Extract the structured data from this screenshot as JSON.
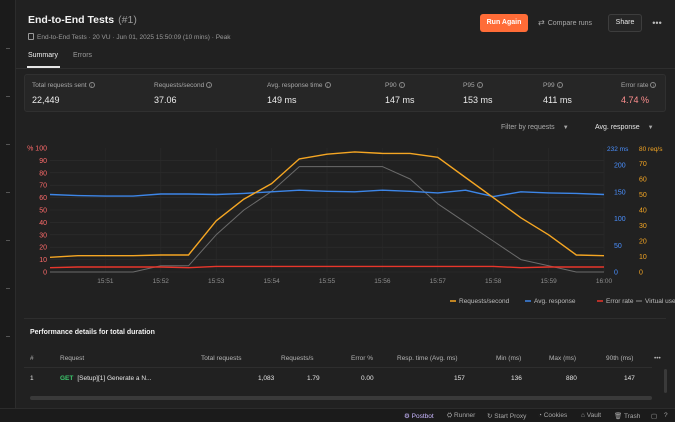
{
  "header": {
    "title": "End-to-End Tests",
    "run_number": "(#1)",
    "meta": "End-to-End Tests  ·   20 VU  ·   Jun 01, 2025 15:50:09 (10 mins)  ·   Peak",
    "run_again_label": "Run Again",
    "compare_label": "Compare runs",
    "share_label": "Share",
    "more_label": "•••"
  },
  "tabs": [
    {
      "label": "Summary",
      "active": true
    },
    {
      "label": "Errors",
      "active": false
    }
  ],
  "stats": [
    {
      "label": "Total requests sent",
      "value": "22,449"
    },
    {
      "label": "Requests/second",
      "value": "37.06"
    },
    {
      "label": "Avg. response time",
      "value": "149 ms"
    },
    {
      "label": "P90",
      "value": "147 ms"
    },
    {
      "label": "P95",
      "value": "153 ms"
    },
    {
      "label": "P99",
      "value": "411 ms"
    },
    {
      "label": "Error rate",
      "value": "4.74 %"
    }
  ],
  "filters": {
    "filter_by": "Filter by requests",
    "metric": "Avg. response"
  },
  "chart_data": {
    "type": "line",
    "x": [
      "15:50",
      "15:50:30",
      "15:51",
      "15:51:30",
      "15:52",
      "15:52:30",
      "15:53",
      "15:53:30",
      "15:54",
      "15:54:30",
      "15:55",
      "15:55:30",
      "15:56",
      "15:56:30",
      "15:57",
      "15:57:30",
      "15:58",
      "15:58:30",
      "15:59",
      "15:59:30",
      "16:00"
    ],
    "x_tick_labels": [
      "15:51",
      "15:52",
      "15:53",
      "15:54",
      "15:55",
      "15:56",
      "15:57",
      "15:58",
      "15:59",
      "16:00"
    ],
    "axes": {
      "left": {
        "label": "% 100",
        "ticks": [
          0,
          10,
          20,
          30,
          40,
          50,
          60,
          70,
          80,
          90
        ],
        "range": [
          0,
          100
        ],
        "color": "#ff6b6b"
      },
      "right_response": {
        "label": "232 ms",
        "ticks": [
          0,
          50,
          100,
          150,
          200
        ],
        "range": [
          0,
          232
        ],
        "color": "#4a90ff"
      },
      "right_throughput": {
        "label": "80 req/s",
        "ticks": [
          0,
          10,
          20,
          30,
          40,
          50,
          60,
          70
        ],
        "range": [
          0,
          80
        ],
        "color": "#f5a623"
      }
    },
    "series": [
      {
        "name": "Requests/second",
        "color": "#f5a623",
        "axis": "right_throughput",
        "values": [
          9.5,
          10.5,
          10.5,
          10.5,
          11,
          11,
          33,
          47,
          57,
          73,
          76,
          77.5,
          76.5,
          76.5,
          74,
          61,
          48,
          35,
          24,
          11,
          10.5
        ]
      },
      {
        "name": "Avg. response",
        "color": "#3d86e8",
        "axis": "right_response",
        "values": [
          145,
          143,
          142,
          142,
          146,
          146,
          145,
          147,
          150,
          153,
          151,
          150,
          153,
          151,
          148,
          153,
          141,
          150,
          148,
          147,
          145
        ]
      },
      {
        "name": "Error rate",
        "color": "#e8362b",
        "axis": "left",
        "values": [
          3.5,
          4,
          4,
          4,
          4,
          3.5,
          4.5,
          4.5,
          4.5,
          4.5,
          4.5,
          4.5,
          4.5,
          4.5,
          4.5,
          4.5,
          4.5,
          3.5,
          4,
          4,
          4
        ]
      },
      {
        "name": "Virtual users",
        "color": "#6b6b6b",
        "axis": "left",
        "values": [
          0,
          0,
          0,
          0,
          5,
          5,
          30,
          50,
          65,
          85,
          85,
          85,
          85,
          75,
          55,
          40,
          25,
          10,
          5,
          0,
          0
        ]
      }
    ],
    "grid": true,
    "legend": "bottom-right"
  },
  "perf": {
    "title": "Performance details for total duration",
    "columns": [
      "#",
      "Request",
      "Total requests",
      "Requests/s",
      "Error %",
      "Resp. time (Avg. ms)",
      "Min (ms)",
      "Max (ms)",
      "90th (ms)"
    ],
    "rows": [
      {
        "index": "1",
        "method": "GET",
        "request": "[Setup][1] Generate a N...",
        "total": "1,083",
        "rps": "1.79",
        "error": "0.00",
        "avg": "157",
        "min": "136",
        "max": "880",
        "p90": "147"
      }
    ],
    "more_label": "•••"
  },
  "statusbar": [
    {
      "label": "Postbot",
      "active": true
    },
    {
      "label": "Runner",
      "active": false
    },
    {
      "label": "Start Proxy",
      "active": false
    },
    {
      "label": "Cookies",
      "active": false
    },
    {
      "label": "Vault",
      "active": false
    },
    {
      "label": "Trash",
      "active": false
    }
  ]
}
